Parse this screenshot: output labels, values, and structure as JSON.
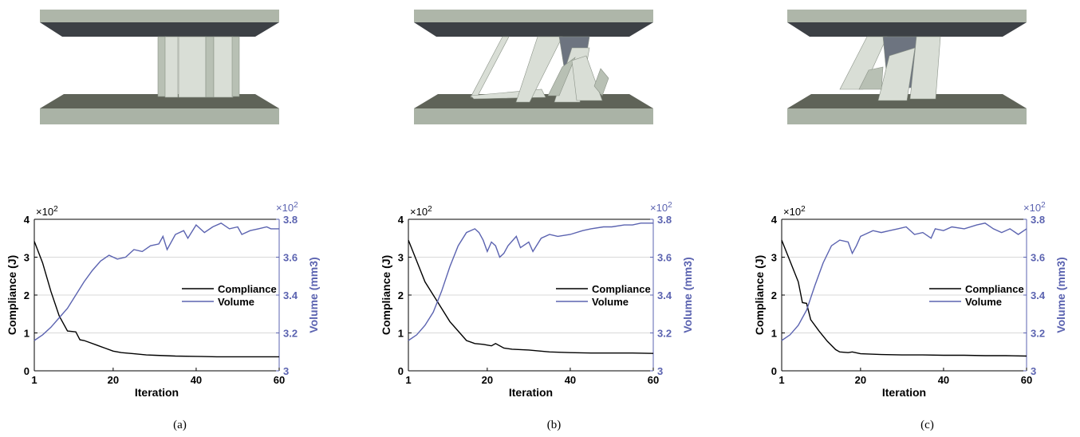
{
  "panels": [
    {
      "caption": "(a)"
    },
    {
      "caption": "(b)"
    },
    {
      "caption": "(c)"
    }
  ],
  "colors": {
    "compliance": "#000000",
    "volume": "#5b63b0",
    "plate_top": "#aeb6a9",
    "plate_side": "#3c4045",
    "plate_bottom_top": "#5f6358",
    "plate_front": "#aab3a6",
    "column_light": "#d9ded6",
    "column_mid": "#b8c0b4",
    "column_dark": "#6d7480",
    "grid": "#d9d9d9"
  },
  "chart_data": [
    {
      "type": "line",
      "xlabel": "Iteration",
      "ylabel_left": "Compliance (J)",
      "ylabel_right": "Volume (mm3)",
      "left_multiplier": "×10",
      "left_multiplier_exp": "2",
      "right_multiplier": "×10",
      "right_multiplier_exp": "2",
      "xlim": [
        1,
        60
      ],
      "xticks": [
        1,
        20,
        40,
        60
      ],
      "ylim_left": [
        0,
        4
      ],
      "yticks_left": [
        0,
        1,
        2,
        3,
        4
      ],
      "ylim_right": [
        3.0,
        3.8
      ],
      "yticks_right": [
        3,
        3.2,
        3.4,
        3.6,
        3.8
      ],
      "ytick_labels_right": [
        "3",
        "3.2",
        "3.4",
        "3.6",
        "3.8"
      ],
      "grid": "horizontal",
      "legend_position": "center-right",
      "series": [
        {
          "name": "Compliance",
          "axis": "left",
          "color": "#000000",
          "x": [
            1,
            3,
            5,
            7,
            9,
            11,
            12,
            13,
            14,
            16,
            18,
            20,
            22,
            25,
            28,
            30,
            35,
            40,
            45,
            50,
            55,
            60
          ],
          "y": [
            3.42,
            2.85,
            2.1,
            1.45,
            1.05,
            1.03,
            0.82,
            0.8,
            0.76,
            0.68,
            0.6,
            0.52,
            0.48,
            0.45,
            0.42,
            0.41,
            0.39,
            0.38,
            0.37,
            0.37,
            0.37,
            0.37
          ]
        },
        {
          "name": "Volume",
          "axis": "right",
          "color": "#5b63b0",
          "x": [
            1,
            3,
            5,
            7,
            9,
            11,
            13,
            15,
            17,
            19,
            21,
            23,
            25,
            27,
            29,
            31,
            32,
            33,
            35,
            37,
            38,
            40,
            42,
            44,
            46,
            48,
            50,
            51,
            53,
            55,
            57,
            58,
            60
          ],
          "y": [
            3.16,
            3.19,
            3.23,
            3.28,
            3.33,
            3.4,
            3.47,
            3.53,
            3.58,
            3.61,
            3.59,
            3.6,
            3.64,
            3.63,
            3.66,
            3.67,
            3.71,
            3.64,
            3.72,
            3.74,
            3.7,
            3.77,
            3.73,
            3.76,
            3.78,
            3.75,
            3.76,
            3.72,
            3.74,
            3.75,
            3.76,
            3.75,
            3.75
          ]
        }
      ]
    },
    {
      "type": "line",
      "xlabel": "Iteration",
      "ylabel_left": "Compliance (J)",
      "ylabel_right": "Volume (mm3)",
      "left_multiplier": "×10",
      "left_multiplier_exp": "2",
      "right_multiplier": "×10",
      "right_multiplier_exp": "2",
      "xlim": [
        1,
        60
      ],
      "xticks": [
        1,
        20,
        40,
        60
      ],
      "ylim_left": [
        0,
        4
      ],
      "yticks_left": [
        0,
        1,
        2,
        3,
        4
      ],
      "ylim_right": [
        3.0,
        3.8
      ],
      "yticks_right": [
        3,
        3.2,
        3.4,
        3.6,
        3.8
      ],
      "ytick_labels_right": [
        "3",
        "3.2",
        "3.4",
        "3.6",
        "3.8"
      ],
      "grid": "horizontal",
      "legend_position": "center-right",
      "series": [
        {
          "name": "Compliance",
          "axis": "left",
          "color": "#000000",
          "x": [
            1,
            3,
            5,
            7,
            9,
            11,
            13,
            15,
            17,
            19,
            21,
            22,
            24,
            26,
            30,
            35,
            40,
            45,
            50,
            55,
            60
          ],
          "y": [
            3.45,
            2.9,
            2.35,
            2.0,
            1.65,
            1.3,
            1.05,
            0.8,
            0.72,
            0.7,
            0.66,
            0.72,
            0.6,
            0.57,
            0.55,
            0.5,
            0.48,
            0.47,
            0.47,
            0.47,
            0.46
          ]
        },
        {
          "name": "Volume",
          "axis": "right",
          "color": "#5b63b0",
          "x": [
            1,
            3,
            5,
            7,
            9,
            11,
            13,
            15,
            17,
            18,
            19,
            20,
            21,
            22,
            23,
            24,
            25,
            27,
            28,
            30,
            31,
            33,
            35,
            37,
            40,
            43,
            45,
            48,
            50,
            53,
            55,
            57,
            60
          ],
          "y": [
            3.16,
            3.19,
            3.24,
            3.31,
            3.42,
            3.55,
            3.66,
            3.73,
            3.75,
            3.73,
            3.69,
            3.63,
            3.68,
            3.66,
            3.6,
            3.62,
            3.66,
            3.71,
            3.65,
            3.68,
            3.63,
            3.7,
            3.72,
            3.71,
            3.72,
            3.74,
            3.75,
            3.76,
            3.76,
            3.77,
            3.77,
            3.78,
            3.78
          ]
        }
      ]
    },
    {
      "type": "line",
      "xlabel": "Iteration",
      "ylabel_left": "Compliance (J)",
      "ylabel_right": "Volume (mm3)",
      "left_multiplier": "×10",
      "left_multiplier_exp": "2",
      "right_multiplier": "×10",
      "right_multiplier_exp": "2",
      "xlim": [
        1,
        60
      ],
      "xticks": [
        1,
        20,
        40,
        60
      ],
      "ylim_left": [
        0,
        4
      ],
      "yticks_left": [
        0,
        1,
        2,
        3,
        4
      ],
      "ylim_right": [
        3.0,
        3.8
      ],
      "yticks_right": [
        3,
        3.2,
        3.4,
        3.6,
        3.8
      ],
      "ytick_labels_right": [
        "3",
        "3.2",
        "3.4",
        "3.6",
        "3.8"
      ],
      "grid": "horizontal",
      "legend_position": "center-right",
      "series": [
        {
          "name": "Compliance",
          "axis": "left",
          "color": "#000000",
          "x": [
            1,
            3,
            5,
            6,
            7,
            8,
            10,
            12,
            14,
            15,
            17,
            18,
            20,
            25,
            30,
            35,
            40,
            45,
            50,
            55,
            60
          ],
          "y": [
            3.45,
            2.9,
            2.35,
            1.8,
            1.78,
            1.35,
            1.05,
            0.78,
            0.56,
            0.5,
            0.48,
            0.5,
            0.45,
            0.43,
            0.42,
            0.42,
            0.41,
            0.41,
            0.4,
            0.4,
            0.39
          ]
        },
        {
          "name": "Volume",
          "axis": "right",
          "color": "#5b63b0",
          "x": [
            1,
            3,
            5,
            7,
            9,
            11,
            13,
            15,
            17,
            18,
            19,
            20,
            21,
            23,
            25,
            27,
            29,
            31,
            33,
            35,
            37,
            38,
            40,
            42,
            45,
            48,
            50,
            52,
            54,
            56,
            58,
            60
          ],
          "y": [
            3.16,
            3.19,
            3.24,
            3.32,
            3.45,
            3.57,
            3.66,
            3.69,
            3.68,
            3.62,
            3.66,
            3.71,
            3.72,
            3.74,
            3.73,
            3.74,
            3.75,
            3.76,
            3.72,
            3.73,
            3.7,
            3.75,
            3.74,
            3.76,
            3.75,
            3.77,
            3.78,
            3.75,
            3.73,
            3.75,
            3.72,
            3.75
          ]
        }
      ]
    }
  ]
}
